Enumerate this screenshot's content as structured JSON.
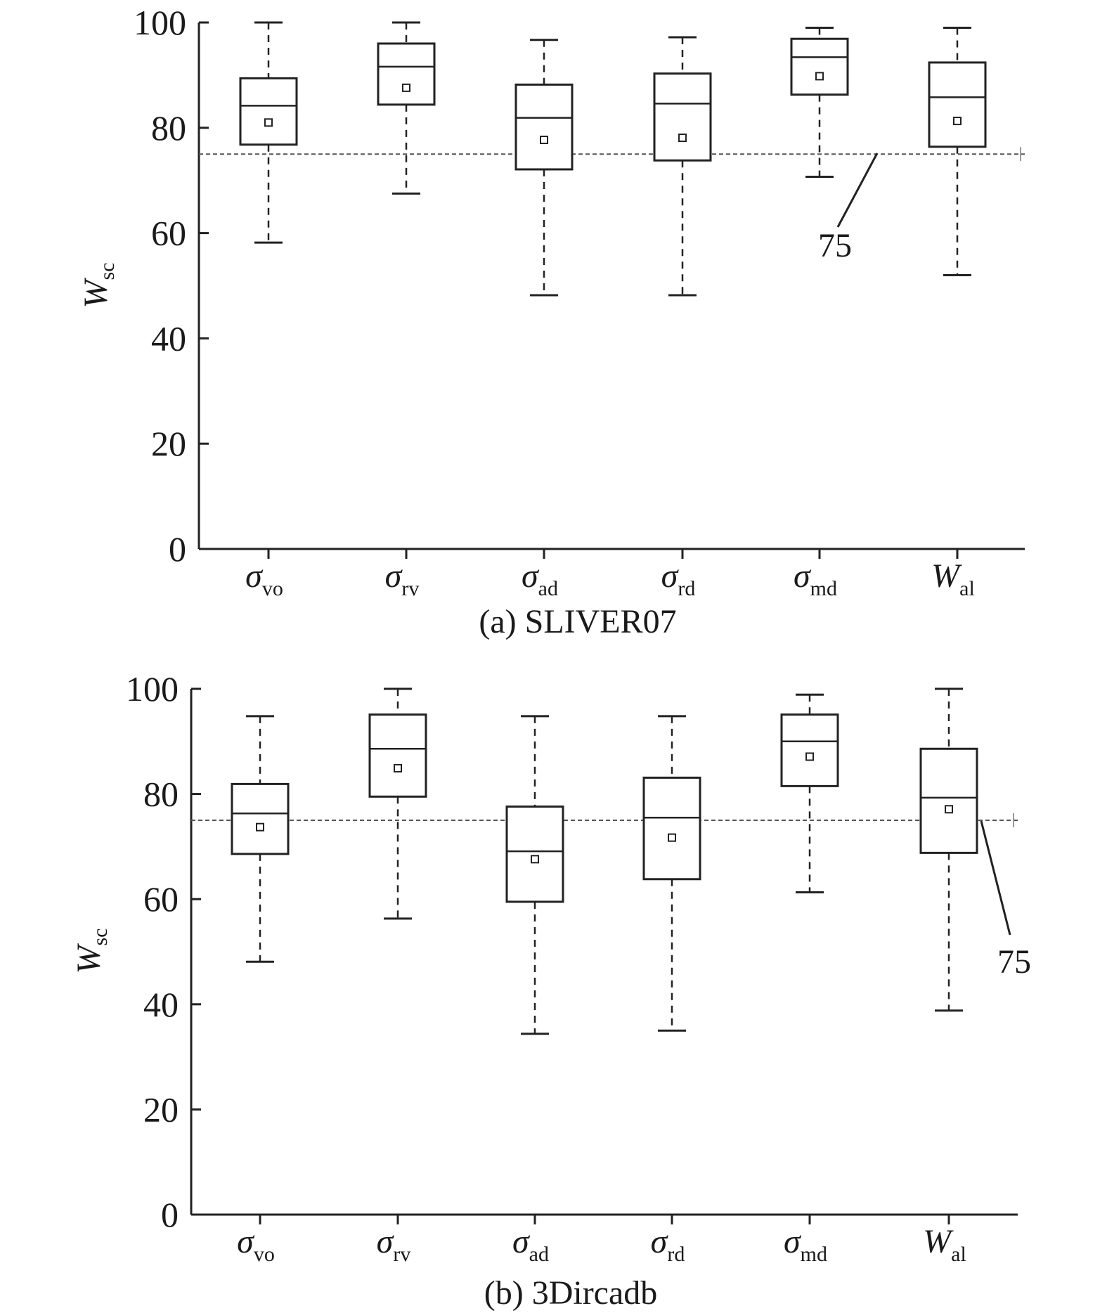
{
  "figure": {
    "ylabel_main": "W",
    "ylabel_sub": "sc"
  },
  "chart_data": [
    {
      "type": "box",
      "caption": "(a) SLIVER07",
      "ylim": [
        0,
        100
      ],
      "yticks": [
        "0",
        "20",
        "40",
        "60",
        "80",
        "100"
      ],
      "categories": [
        {
          "main": "σ",
          "sub": "vo"
        },
        {
          "main": "σ",
          "sub": "rv"
        },
        {
          "main": "σ",
          "sub": "ad"
        },
        {
          "main": "σ",
          "sub": "rd"
        },
        {
          "main": "σ",
          "sub": "md"
        },
        {
          "main": "W",
          "sub": "al"
        }
      ],
      "boxes": [
        {
          "min": 58.2,
          "q1": 76.8,
          "median": 84.2,
          "q3": 89.4,
          "max": 100,
          "mean": 81.0
        },
        {
          "min": 67.5,
          "q1": 84.4,
          "median": 91.6,
          "q3": 96.0,
          "max": 100,
          "mean": 87.6
        },
        {
          "min": 48.2,
          "q1": 72.1,
          "median": 81.9,
          "q3": 88.2,
          "max": 96.7,
          "mean": 77.7
        },
        {
          "min": 48.2,
          "q1": 73.8,
          "median": 84.6,
          "q3": 90.3,
          "max": 97.2,
          "mean": 78.1
        },
        {
          "min": 70.7,
          "q1": 86.3,
          "median": 93.4,
          "q3": 96.9,
          "max": 99.0,
          "mean": 89.8
        },
        {
          "min": 52.0,
          "q1": 76.4,
          "median": 85.8,
          "q3": 92.4,
          "max": 99.0,
          "mean": 81.3
        }
      ],
      "reference_line": {
        "value": 75,
        "label": "75"
      }
    },
    {
      "type": "box",
      "caption": "(b) 3Dircadb",
      "ylim": [
        0,
        100
      ],
      "yticks": [
        "0",
        "20",
        "40",
        "60",
        "80",
        "100"
      ],
      "categories": [
        {
          "main": "σ",
          "sub": "vo"
        },
        {
          "main": "σ",
          "sub": "rv"
        },
        {
          "main": "σ",
          "sub": "ad"
        },
        {
          "main": "σ",
          "sub": "rd"
        },
        {
          "main": "σ",
          "sub": "md"
        },
        {
          "main": "W",
          "sub": "al"
        }
      ],
      "boxes": [
        {
          "min": 48.1,
          "q1": 68.6,
          "median": 76.3,
          "q3": 81.9,
          "max": 94.8,
          "mean": 73.7
        },
        {
          "min": 56.3,
          "q1": 79.5,
          "median": 88.6,
          "q3": 95.1,
          "max": 100,
          "mean": 84.9
        },
        {
          "min": 34.4,
          "q1": 59.5,
          "median": 69.1,
          "q3": 77.6,
          "max": 94.8,
          "mean": 67.6
        },
        {
          "min": 35.0,
          "q1": 63.8,
          "median": 75.5,
          "q3": 83.1,
          "max": 94.8,
          "mean": 71.7
        },
        {
          "min": 61.3,
          "q1": 81.5,
          "median": 90.0,
          "q3": 95.1,
          "max": 98.9,
          "mean": 87.1
        },
        {
          "min": 38.8,
          "q1": 68.8,
          "median": 79.3,
          "q3": 88.6,
          "max": 100,
          "mean": 77.1
        }
      ],
      "reference_line": {
        "value": 75,
        "label": "75"
      }
    }
  ]
}
